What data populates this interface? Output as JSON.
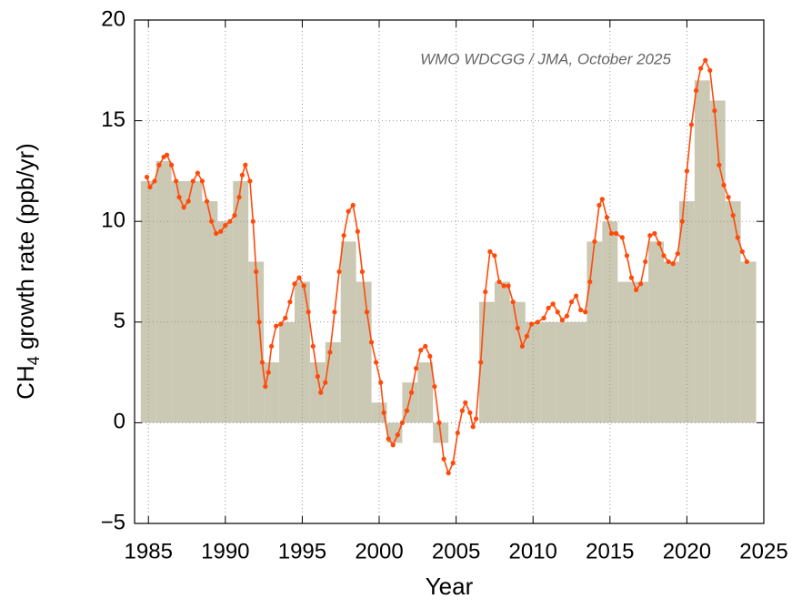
{
  "chart_data": {
    "type": "combo",
    "annotation": "WMO WDCGG / JMA, October 2025",
    "x_label": "Year",
    "y_label": {
      "text": "CH",
      "subscript": "4",
      "rest": " growth rate (ppb/yr)"
    },
    "xlim": [
      1984.1,
      2025
    ],
    "xticks": [
      1985,
      1990,
      1995,
      2000,
      2005,
      2010,
      2015,
      2020,
      2025
    ],
    "ylim": [
      -5,
      20
    ],
    "yticks": [
      {
        "value": -5,
        "label": "−5"
      },
      0,
      5,
      10,
      15,
      20
    ],
    "grid": true,
    "bars": {
      "color": "#cbc8b3",
      "x": [
        1985,
        1986,
        1987,
        1988,
        1989,
        1990,
        1991,
        1992,
        1993,
        1994,
        1995,
        1996,
        1997,
        1998,
        1999,
        2000,
        2001,
        2002,
        2003,
        2004,
        2005,
        2006,
        2007,
        2008,
        2009,
        2010,
        2011,
        2012,
        2013,
        2014,
        2015,
        2016,
        2017,
        2018,
        2019,
        2020,
        2021,
        2022,
        2023,
        2024
      ],
      "values": [
        12,
        13,
        12,
        12,
        11,
        10,
        12,
        8,
        3,
        5,
        7,
        3,
        4,
        9,
        7,
        1,
        -1,
        2,
        3,
        -1,
        0,
        0,
        6,
        7,
        6,
        5,
        5,
        5,
        5,
        9,
        10,
        7,
        7,
        9,
        8,
        11,
        17,
        16,
        11,
        8
      ]
    },
    "line": {
      "color": "#ff4a0a",
      "x": [
        1984.9,
        1985.1,
        1985.4,
        1985.7,
        1986.0,
        1986.2,
        1986.5,
        1986.8,
        1987.0,
        1987.3,
        1987.6,
        1987.9,
        1988.2,
        1988.5,
        1988.8,
        1989.1,
        1989.4,
        1989.7,
        1990.0,
        1990.3,
        1990.6,
        1990.9,
        1991.1,
        1991.3,
        1991.6,
        1991.8,
        1992.0,
        1992.2,
        1992.4,
        1992.6,
        1992.8,
        1993.0,
        1993.3,
        1993.6,
        1993.9,
        1994.2,
        1994.5,
        1994.8,
        1995.1,
        1995.4,
        1995.7,
        1996.0,
        1996.2,
        1996.5,
        1996.8,
        1997.1,
        1997.4,
        1997.7,
        1998.0,
        1998.3,
        1998.6,
        1998.9,
        1999.2,
        1999.5,
        1999.8,
        2000.1,
        2000.3,
        2000.6,
        2000.9,
        2001.2,
        2001.5,
        2001.8,
        2002.1,
        2002.4,
        2002.7,
        2003.0,
        2003.3,
        2003.6,
        2003.9,
        2004.2,
        2004.5,
        2004.8,
        2005.1,
        2005.4,
        2005.6,
        2005.9,
        2006.1,
        2006.3,
        2006.6,
        2006.9,
        2007.2,
        2007.5,
        2007.8,
        2008.1,
        2008.4,
        2008.7,
        2009.0,
        2009.3,
        2009.6,
        2009.9,
        2010.3,
        2010.7,
        2011.0,
        2011.3,
        2011.6,
        2011.9,
        2012.2,
        2012.5,
        2012.8,
        2013.1,
        2013.4,
        2013.7,
        2014.0,
        2014.3,
        2014.5,
        2014.8,
        2015.1,
        2015.4,
        2015.8,
        2016.1,
        2016.4,
        2016.7,
        2017.0,
        2017.3,
        2017.6,
        2017.9,
        2018.2,
        2018.5,
        2018.8,
        2019.1,
        2019.4,
        2019.7,
        2020.0,
        2020.3,
        2020.6,
        2020.9,
        2021.2,
        2021.5,
        2021.8,
        2022.1,
        2022.4,
        2022.7,
        2023.0,
        2023.3,
        2023.6,
        2023.9
      ],
      "values": [
        12.2,
        11.7,
        12.0,
        12.8,
        13.2,
        13.3,
        12.8,
        12.0,
        11.2,
        10.7,
        11.0,
        12.0,
        12.4,
        12.0,
        11.0,
        10.0,
        9.4,
        9.5,
        9.8,
        10.0,
        10.3,
        11.2,
        12.3,
        12.8,
        12.0,
        10.0,
        7.5,
        5.0,
        3.0,
        1.8,
        2.5,
        3.8,
        4.8,
        4.9,
        5.2,
        6.0,
        6.9,
        7.2,
        6.8,
        5.5,
        3.8,
        2.3,
        1.5,
        2.0,
        3.5,
        5.5,
        7.5,
        9.3,
        10.5,
        10.8,
        9.5,
        7.5,
        5.5,
        4.0,
        3.0,
        2.0,
        0.5,
        -0.8,
        -1.1,
        -0.6,
        0.0,
        0.6,
        1.5,
        2.7,
        3.6,
        3.8,
        3.3,
        1.8,
        0.0,
        -1.8,
        -2.5,
        -2.0,
        -0.5,
        0.6,
        1.0,
        0.5,
        -0.2,
        0.2,
        3.0,
        6.5,
        8.5,
        8.3,
        7.0,
        6.8,
        6.8,
        6.0,
        4.7,
        3.8,
        4.3,
        4.9,
        5.0,
        5.2,
        5.7,
        5.9,
        5.5,
        5.1,
        5.3,
        6.0,
        6.3,
        5.6,
        5.5,
        7.0,
        9.0,
        10.8,
        11.1,
        10.2,
        9.4,
        9.4,
        9.2,
        8.3,
        7.2,
        6.6,
        6.9,
        8.0,
        9.3,
        9.4,
        8.9,
        8.3,
        8.0,
        7.9,
        8.4,
        10.0,
        12.5,
        14.8,
        16.5,
        17.6,
        18.0,
        17.5,
        15.5,
        12.8,
        11.8,
        11.2,
        10.3,
        9.2,
        8.5,
        8.0
      ]
    }
  }
}
